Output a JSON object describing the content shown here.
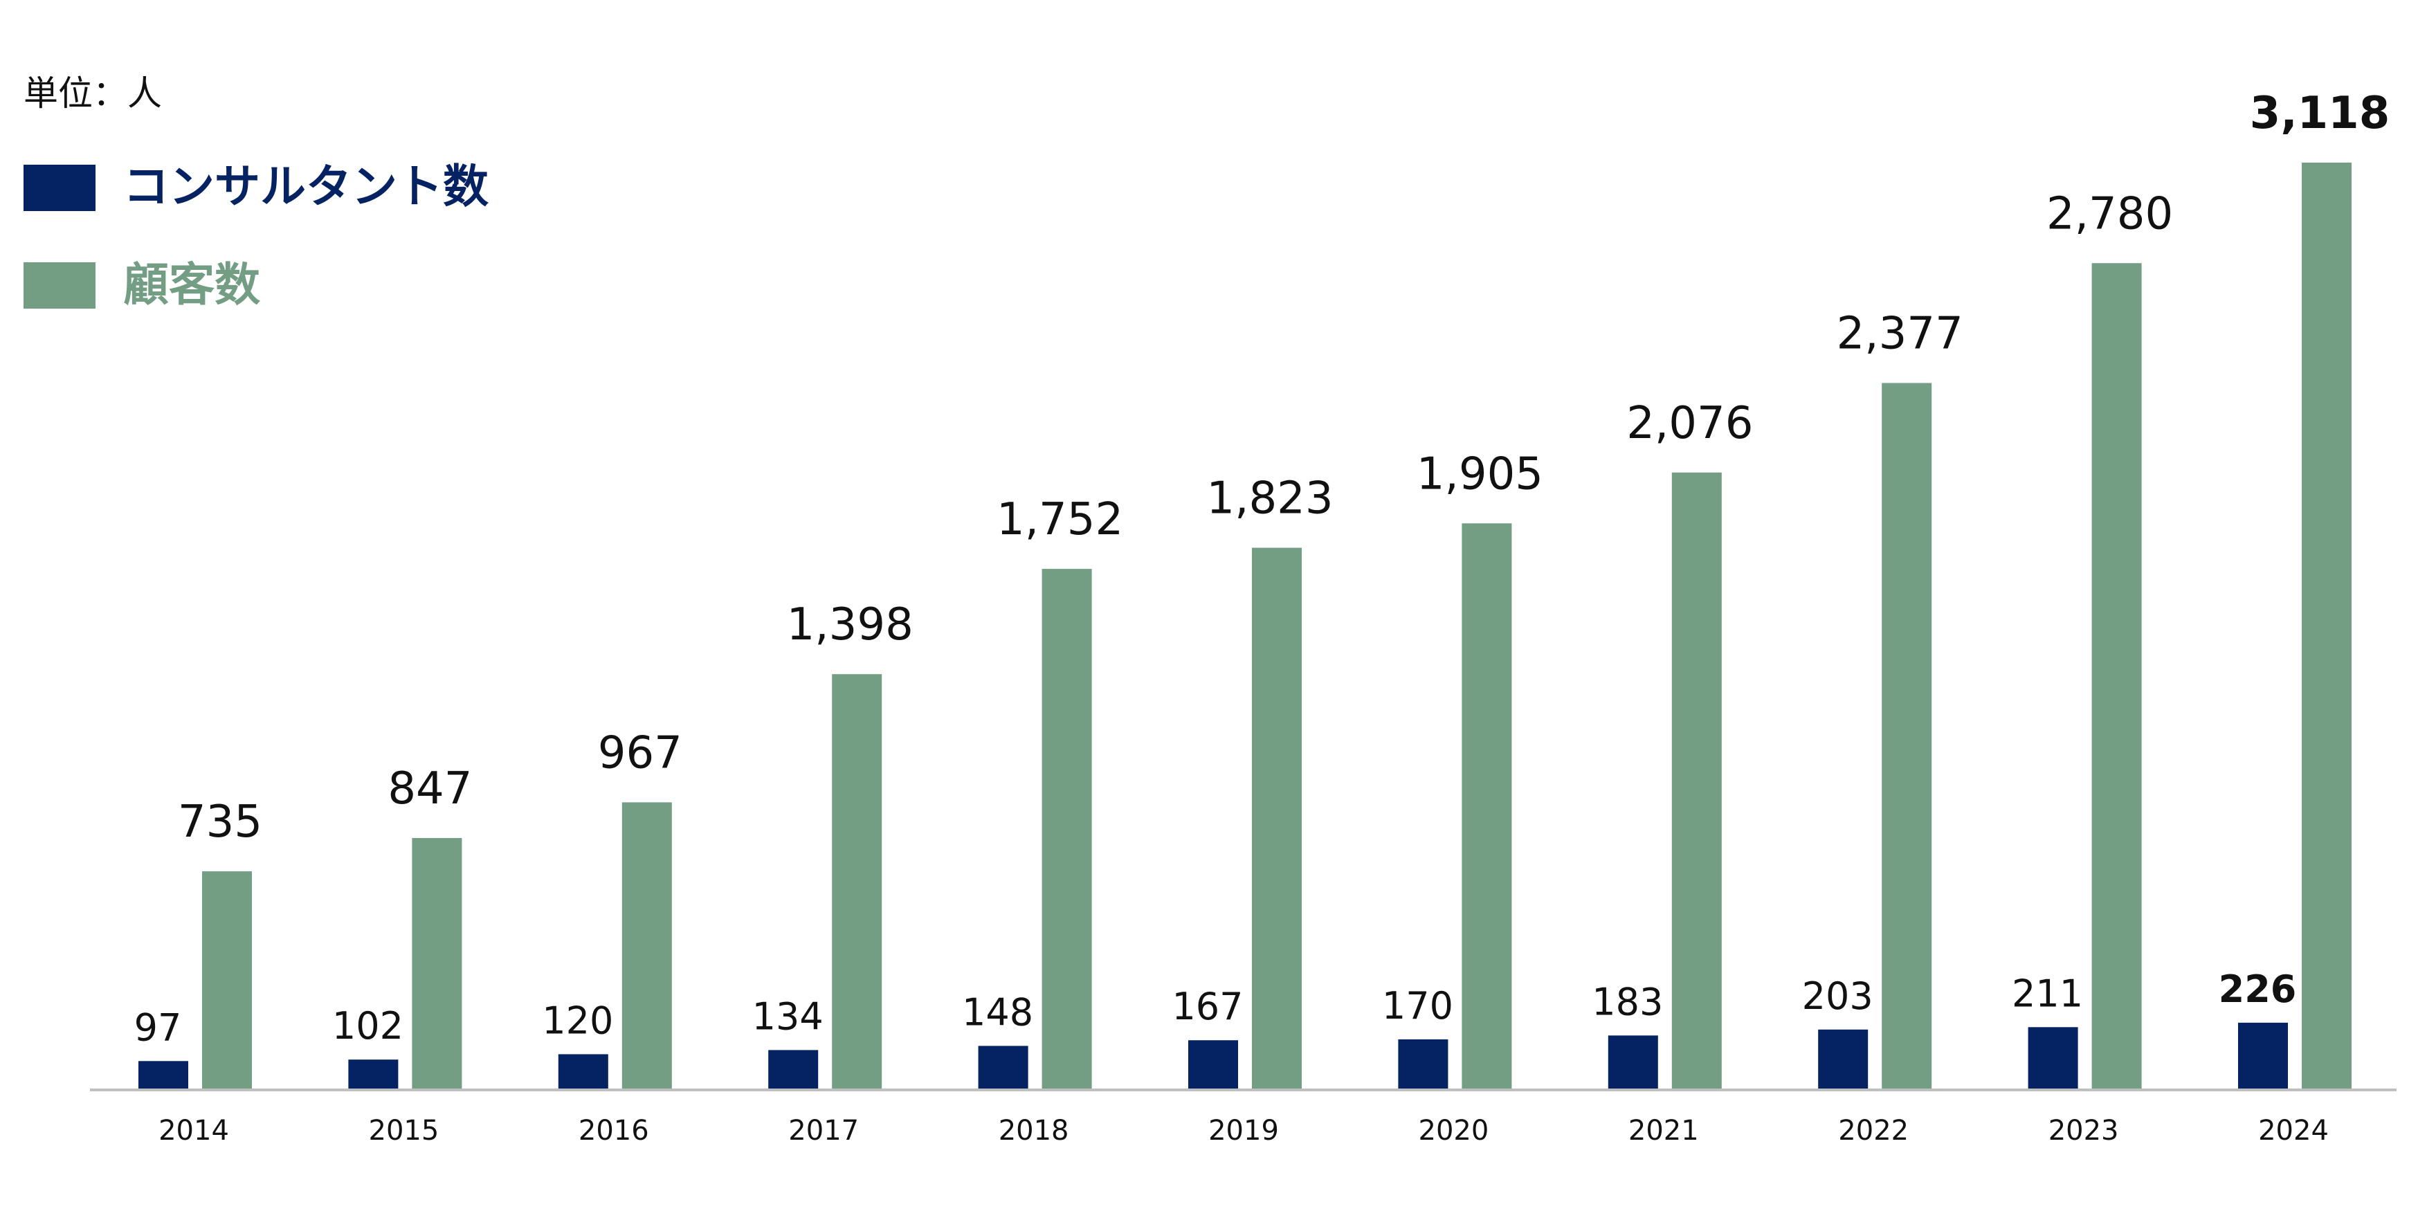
{
  "colors": {
    "consultants": "#052262",
    "clients": "#739e84",
    "axis": "#bfbfbf",
    "text": "#111111"
  },
  "chart_data": {
    "type": "bar",
    "unit_label": "単位：人",
    "categories": [
      "2014",
      "2015",
      "2016",
      "2017",
      "2018",
      "2019",
      "2020",
      "2021",
      "2022",
      "2023",
      "2024"
    ],
    "series": [
      {
        "name": "コンサルタント数",
        "values": [
          97,
          102,
          120,
          134,
          148,
          167,
          170,
          183,
          203,
          211,
          226
        ],
        "labels": [
          "97",
          "102",
          "120",
          "134",
          "148",
          "167",
          "170",
          "183",
          "203",
          "211",
          "226"
        ]
      },
      {
        "name": "顧客数",
        "values": [
          735,
          847,
          967,
          1398,
          1752,
          1823,
          1905,
          2076,
          2377,
          2780,
          3118
        ],
        "labels": [
          "735",
          "847",
          "967",
          "1,398",
          "1,752",
          "1,823",
          "1,905",
          "2,076",
          "2,377",
          "2,780",
          "3,118"
        ]
      }
    ],
    "ylim": [
      0,
      3118
    ],
    "legend_position": "top-left",
    "grid": false
  }
}
